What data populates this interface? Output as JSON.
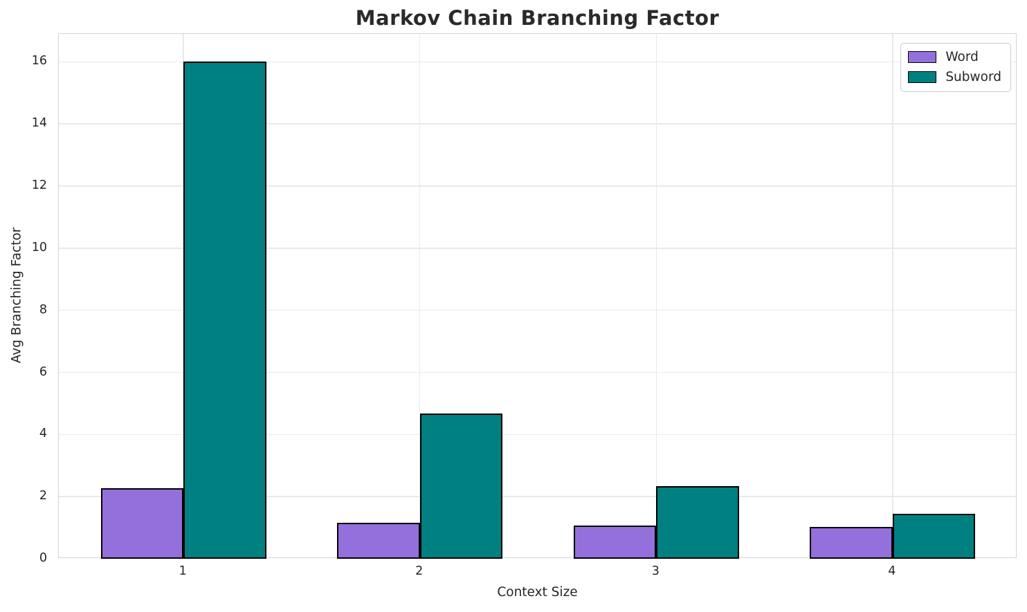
{
  "chart_data": {
    "type": "bar",
    "title": "Markov Chain Branching Factor",
    "xlabel": "Context Size",
    "ylabel": "Avg Branching Factor",
    "categories": [
      "1",
      "2",
      "3",
      "4"
    ],
    "series": [
      {
        "name": "Word",
        "color": "#9370DB",
        "values": [
          2.28,
          1.15,
          1.06,
          1.03
        ]
      },
      {
        "name": "Subword",
        "color": "#008080",
        "values": [
          16.02,
          4.67,
          2.33,
          1.45
        ]
      }
    ],
    "yticks": [
      0,
      2,
      4,
      6,
      8,
      10,
      12,
      14,
      16
    ],
    "ylim": [
      0,
      16.9
    ],
    "grid": true,
    "legend_position": "upper right",
    "bar_width": 0.35,
    "bar_edge_color": "#000000"
  },
  "colors": {
    "grid": "#e8e8e8",
    "spine": "#d3d3d3",
    "text": "#262626",
    "background": "#ffffff"
  }
}
